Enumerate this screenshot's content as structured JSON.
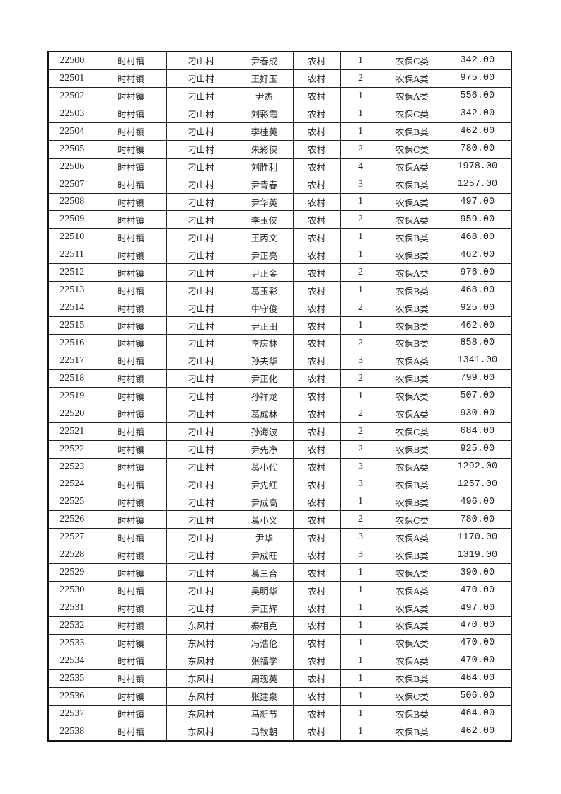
{
  "table": {
    "rows": [
      [
        "22500",
        "时村镇",
        "刁山村",
        "尹春成",
        "农村",
        "1",
        "农保C类",
        "342.00"
      ],
      [
        "22501",
        "时村镇",
        "刁山村",
        "王好玉",
        "农村",
        "2",
        "农保A类",
        "975.00"
      ],
      [
        "22502",
        "时村镇",
        "刁山村",
        "尹杰",
        "农村",
        "1",
        "农保A类",
        "556.00"
      ],
      [
        "22503",
        "时村镇",
        "刁山村",
        "刘彩霞",
        "农村",
        "1",
        "农保C类",
        "342.00"
      ],
      [
        "22504",
        "时村镇",
        "刁山村",
        "李桂英",
        "农村",
        "1",
        "农保B类",
        "462.00"
      ],
      [
        "22505",
        "时村镇",
        "刁山村",
        "朱彩侠",
        "农村",
        "2",
        "农保C类",
        "780.00"
      ],
      [
        "22506",
        "时村镇",
        "刁山村",
        "刘胜利",
        "农村",
        "4",
        "农保A类",
        "1978.00"
      ],
      [
        "22507",
        "时村镇",
        "刁山村",
        "尹青春",
        "农村",
        "3",
        "农保B类",
        "1257.00"
      ],
      [
        "22508",
        "时村镇",
        "刁山村",
        "尹华英",
        "农村",
        "1",
        "农保A类",
        "497.00"
      ],
      [
        "22509",
        "时村镇",
        "刁山村",
        "李玉侠",
        "农村",
        "2",
        "农保A类",
        "959.00"
      ],
      [
        "22510",
        "时村镇",
        "刁山村",
        "王丙文",
        "农村",
        "1",
        "农保B类",
        "468.00"
      ],
      [
        "22511",
        "时村镇",
        "刁山村",
        "尹正亮",
        "农村",
        "1",
        "农保B类",
        "462.00"
      ],
      [
        "22512",
        "时村镇",
        "刁山村",
        "尹正金",
        "农村",
        "2",
        "农保A类",
        "976.00"
      ],
      [
        "22513",
        "时村镇",
        "刁山村",
        "葛玉彩",
        "农村",
        "1",
        "农保B类",
        "468.00"
      ],
      [
        "22514",
        "时村镇",
        "刁山村",
        "牛守俊",
        "农村",
        "2",
        "农保B类",
        "925.00"
      ],
      [
        "22515",
        "时村镇",
        "刁山村",
        "尹正田",
        "农村",
        "1",
        "农保B类",
        "462.00"
      ],
      [
        "22516",
        "时村镇",
        "刁山村",
        "李庆林",
        "农村",
        "2",
        "农保B类",
        "858.00"
      ],
      [
        "22517",
        "时村镇",
        "刁山村",
        "孙夫华",
        "农村",
        "3",
        "农保A类",
        "1341.00"
      ],
      [
        "22518",
        "时村镇",
        "刁山村",
        "尹正化",
        "农村",
        "2",
        "农保B类",
        "799.00"
      ],
      [
        "22519",
        "时村镇",
        "刁山村",
        "孙祥龙",
        "农村",
        "1",
        "农保A类",
        "507.00"
      ],
      [
        "22520",
        "时村镇",
        "刁山村",
        "葛成林",
        "农村",
        "2",
        "农保A类",
        "930.00"
      ],
      [
        "22521",
        "时村镇",
        "刁山村",
        "孙海波",
        "农村",
        "2",
        "农保C类",
        "684.00"
      ],
      [
        "22522",
        "时村镇",
        "刁山村",
        "尹先净",
        "农村",
        "2",
        "农保B类",
        "925.00"
      ],
      [
        "22523",
        "时村镇",
        "刁山村",
        "葛小代",
        "农村",
        "3",
        "农保A类",
        "1292.00"
      ],
      [
        "22524",
        "时村镇",
        "刁山村",
        "尹先红",
        "农村",
        "3",
        "农保B类",
        "1257.00"
      ],
      [
        "22525",
        "时村镇",
        "刁山村",
        "尹成高",
        "农村",
        "1",
        "农保B类",
        "496.00"
      ],
      [
        "22526",
        "时村镇",
        "刁山村",
        "葛小义",
        "农村",
        "2",
        "农保C类",
        "780.00"
      ],
      [
        "22527",
        "时村镇",
        "刁山村",
        "尹华",
        "农村",
        "3",
        "农保A类",
        "1170.00"
      ],
      [
        "22528",
        "时村镇",
        "刁山村",
        "尹成旺",
        "农村",
        "3",
        "农保B类",
        "1319.00"
      ],
      [
        "22529",
        "时村镇",
        "刁山村",
        "葛三合",
        "农村",
        "1",
        "农保A类",
        "390.00"
      ],
      [
        "22530",
        "时村镇",
        "刁山村",
        "吴明华",
        "农村",
        "1",
        "农保A类",
        "470.00"
      ],
      [
        "22531",
        "时村镇",
        "刁山村",
        "尹正辉",
        "农村",
        "1",
        "农保A类",
        "497.00"
      ],
      [
        "22532",
        "时村镇",
        "东风村",
        "秦相克",
        "农村",
        "1",
        "农保A类",
        "470.00"
      ],
      [
        "22533",
        "时村镇",
        "东风村",
        "冯浩伦",
        "农村",
        "1",
        "农保A类",
        "470.00"
      ],
      [
        "22534",
        "时村镇",
        "东风村",
        "张福学",
        "农村",
        "1",
        "农保A类",
        "470.00"
      ],
      [
        "22535",
        "时村镇",
        "东风村",
        "周现英",
        "农村",
        "1",
        "农保B类",
        "464.00"
      ],
      [
        "22536",
        "时村镇",
        "东风村",
        "张建泉",
        "农村",
        "1",
        "农保C类",
        "506.00"
      ],
      [
        "22537",
        "时村镇",
        "东风村",
        "马新节",
        "农村",
        "1",
        "农保B类",
        "464.00"
      ],
      [
        "22538",
        "时村镇",
        "东风村",
        "马钦朝",
        "农村",
        "1",
        "农保B类",
        "462.00"
      ]
    ]
  }
}
